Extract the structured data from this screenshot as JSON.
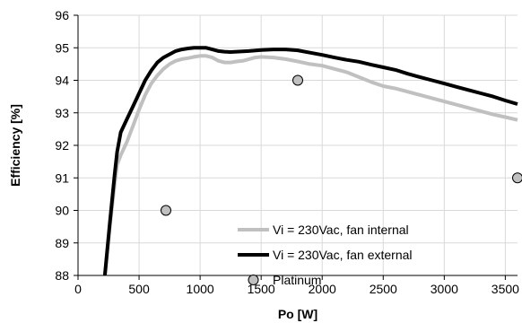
{
  "chart_data": {
    "type": "line",
    "xlabel": "Po [W]",
    "ylabel": "Efficiency [%]",
    "xlim": [
      0,
      3600
    ],
    "ylim": [
      88,
      96
    ],
    "xticks": [
      0,
      500,
      1000,
      1500,
      2000,
      2500,
      3000,
      3500
    ],
    "yticks": [
      88,
      89,
      90,
      91,
      92,
      93,
      94,
      95,
      96
    ],
    "grid": true,
    "legend_position": "bottom-right",
    "series": [
      {
        "name": "Vi = 230Vac, fan internal",
        "kind": "line",
        "color": "#c0c0c0",
        "x": [
          220,
          260,
          300,
          320,
          350,
          400,
          450,
          500,
          550,
          600,
          650,
          700,
          750,
          800,
          850,
          900,
          950,
          1000,
          1050,
          1100,
          1150,
          1200,
          1250,
          1300,
          1350,
          1400,
          1450,
          1500,
          1600,
          1700,
          1800,
          1900,
          2000,
          2100,
          2200,
          2300,
          2400,
          2500,
          2600,
          2700,
          2800,
          2900,
          3000,
          3100,
          3200,
          3300,
          3400,
          3500,
          3600
        ],
        "y": [
          88.0,
          89.5,
          90.8,
          91.4,
          91.7,
          92.1,
          92.6,
          93.1,
          93.55,
          93.9,
          94.15,
          94.35,
          94.5,
          94.6,
          94.65,
          94.68,
          94.72,
          94.75,
          94.75,
          94.7,
          94.6,
          94.55,
          94.55,
          94.58,
          94.6,
          94.65,
          94.7,
          94.72,
          94.7,
          94.65,
          94.58,
          94.5,
          94.45,
          94.35,
          94.25,
          94.1,
          93.95,
          93.82,
          93.75,
          93.65,
          93.55,
          93.45,
          93.35,
          93.25,
          93.15,
          93.05,
          92.95,
          92.87,
          92.78
        ]
      },
      {
        "name": "Vi = 230Vac, fan external",
        "kind": "line",
        "color": "#000000",
        "x": [
          220,
          260,
          300,
          320,
          350,
          400,
          450,
          500,
          550,
          600,
          650,
          700,
          750,
          800,
          850,
          900,
          950,
          1000,
          1050,
          1100,
          1150,
          1200,
          1250,
          1300,
          1400,
          1500,
          1600,
          1700,
          1800,
          1900,
          2000,
          2100,
          2200,
          2300,
          2400,
          2500,
          2600,
          2700,
          2800,
          2900,
          3000,
          3100,
          3200,
          3300,
          3400,
          3500,
          3600
        ],
        "y": [
          88.0,
          89.6,
          91.1,
          91.8,
          92.4,
          92.8,
          93.2,
          93.6,
          94.0,
          94.3,
          94.55,
          94.7,
          94.8,
          94.9,
          94.95,
          94.98,
          95.0,
          95.0,
          95.0,
          94.95,
          94.9,
          94.88,
          94.87,
          94.88,
          94.9,
          94.93,
          94.95,
          94.95,
          94.92,
          94.85,
          94.78,
          94.7,
          94.63,
          94.57,
          94.48,
          94.4,
          94.32,
          94.2,
          94.1,
          94.0,
          93.9,
          93.8,
          93.7,
          93.6,
          93.5,
          93.38,
          93.27
        ]
      },
      {
        "name": "Platinum",
        "kind": "marker",
        "color": "#c0c0c0",
        "x": [
          720,
          1800,
          3600
        ],
        "y": [
          90.0,
          94.0,
          91.0
        ]
      }
    ]
  }
}
